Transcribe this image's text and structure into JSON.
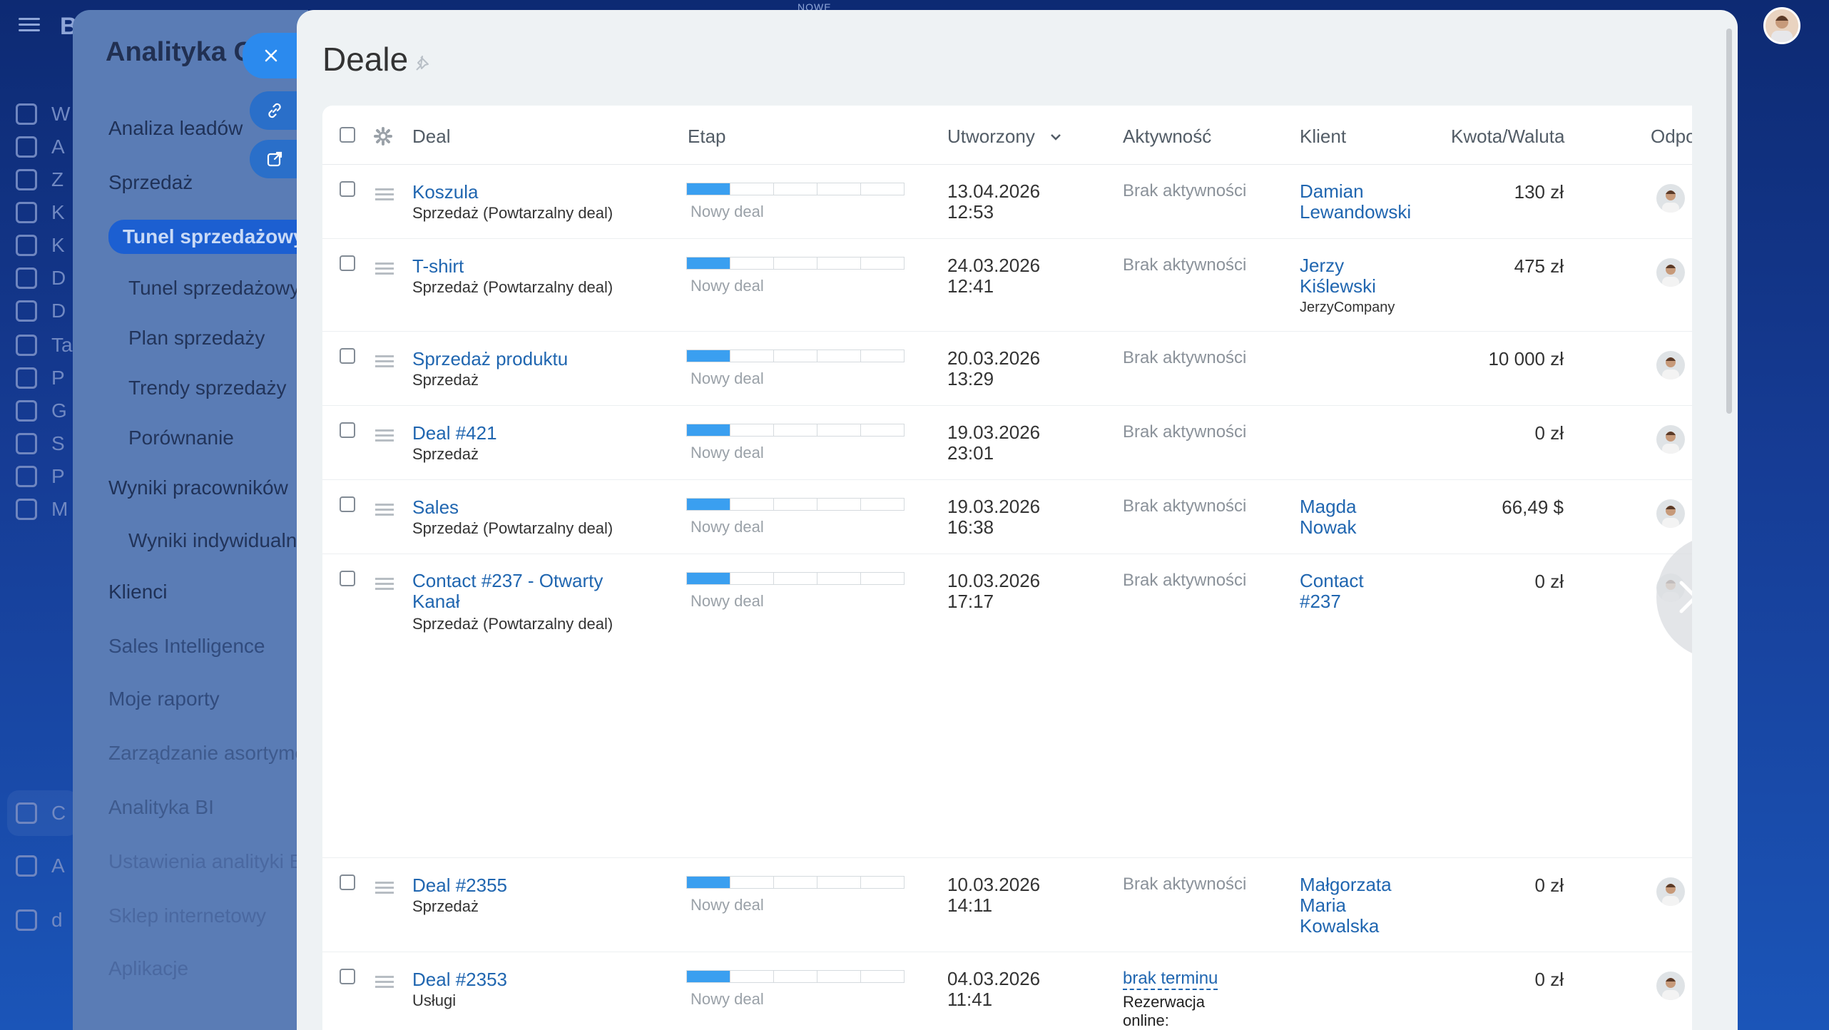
{
  "app": {
    "brand": "B",
    "top_note": "NOWE",
    "rail_items": [
      "W",
      "A",
      "Z",
      "K",
      "K",
      "D",
      "D",
      "Ta",
      "P",
      "G",
      "S",
      "P",
      "M",
      "C",
      "A",
      "d"
    ]
  },
  "analytics": {
    "title": "Analityka CRM",
    "menu": [
      {
        "label": "Analiza leadów"
      },
      {
        "label": "Sprzedaż"
      },
      {
        "label": "Tunel sprzedażowy"
      },
      {
        "label": "Tunel sprzedażowy"
      },
      {
        "label": "Plan sprzedaży"
      },
      {
        "label": "Trendy sprzedaży"
      },
      {
        "label": "Porównanie"
      },
      {
        "label": "Wyniki pracowników"
      },
      {
        "label": "Wyniki indywidualne"
      },
      {
        "label": "Klienci"
      },
      {
        "label": "Sales Intelligence"
      },
      {
        "label": "Moje raporty"
      },
      {
        "label": "Zarządzanie asortymentem"
      },
      {
        "label": "Analityka BI"
      },
      {
        "label": "Ustawienia analityki BI"
      },
      {
        "label": "Sklep internetowy"
      },
      {
        "label": "Aplikacje"
      }
    ]
  },
  "deals": {
    "title": "Deale",
    "columns": {
      "deal": "Deal",
      "stage": "Etap",
      "created": "Utworzony",
      "activity": "Aktywność",
      "client": "Klient",
      "amount": "Kwota/Waluta",
      "owner": "Odpo"
    },
    "rows": [
      {
        "name": "Koszula",
        "sub": "Sprzedaż (Powtarzalny deal)",
        "stage": "Nowy deal",
        "date": "13.04.2026",
        "time": "12:53",
        "activity": "Brak aktywności",
        "client": [
          "Damian",
          "Lewandowski"
        ],
        "company": "",
        "amount": "130 zł"
      },
      {
        "name": "T-shirt",
        "sub": "Sprzedaż (Powtarzalny deal)",
        "stage": "Nowy deal",
        "date": "24.03.2026",
        "time": "12:41",
        "activity": "Brak aktywności",
        "client": [
          "Jerzy",
          "Kiślewski"
        ],
        "company": "JerzyCompany",
        "amount": "475 zł"
      },
      {
        "name": "Sprzedaż produktu",
        "sub": "Sprzedaż",
        "stage": "Nowy deal",
        "date": "20.03.2026",
        "time": "13:29",
        "activity": "Brak aktywności",
        "client": [],
        "company": "",
        "amount": "10 000 zł"
      },
      {
        "name": "Deal #421",
        "sub": "Sprzedaż",
        "stage": "Nowy deal",
        "date": "19.03.2026",
        "time": "23:01",
        "activity": "Brak aktywności",
        "client": [],
        "company": "",
        "amount": "0 zł"
      },
      {
        "name": "Sales",
        "sub": "Sprzedaż (Powtarzalny deal)",
        "stage": "Nowy deal",
        "date": "19.03.2026",
        "time": "16:38",
        "activity": "Brak aktywności",
        "client": [
          "Magda",
          "Nowak"
        ],
        "company": "",
        "amount": "66,49 $"
      },
      {
        "name": [
          "Contact #237 - Otwarty",
          "Kanał"
        ],
        "sub": "Sprzedaż (Powtarzalny deal)",
        "stage": "Nowy deal",
        "date": "10.03.2026",
        "time": "17:17",
        "activity": "Brak aktywności",
        "client": [
          "Contact",
          "#237"
        ],
        "company": "",
        "amount": "0 zł"
      },
      {
        "name": "Deal #2355",
        "sub": "Sprzedaż",
        "stage": "Nowy deal",
        "date": "10.03.2026",
        "time": "14:11",
        "activity": "Brak aktywności",
        "client": [
          "Małgorzata",
          "Maria",
          "Kowalska"
        ],
        "company": "",
        "amount": "0 zł"
      },
      {
        "name": "Deal #2353",
        "sub": "Usługi",
        "stage": "Nowy deal",
        "date": "04.03.2026",
        "time": "11:41",
        "activity_link": "brak terminu",
        "activity_text": [
          "Rezerwacja",
          "online:"
        ],
        "client": [],
        "company": "",
        "amount": "0 zł"
      }
    ]
  },
  "colors": {
    "accent": "#2066b0",
    "stage_fill": "#3a9ff0",
    "active_menu": "#1c5fd1"
  }
}
